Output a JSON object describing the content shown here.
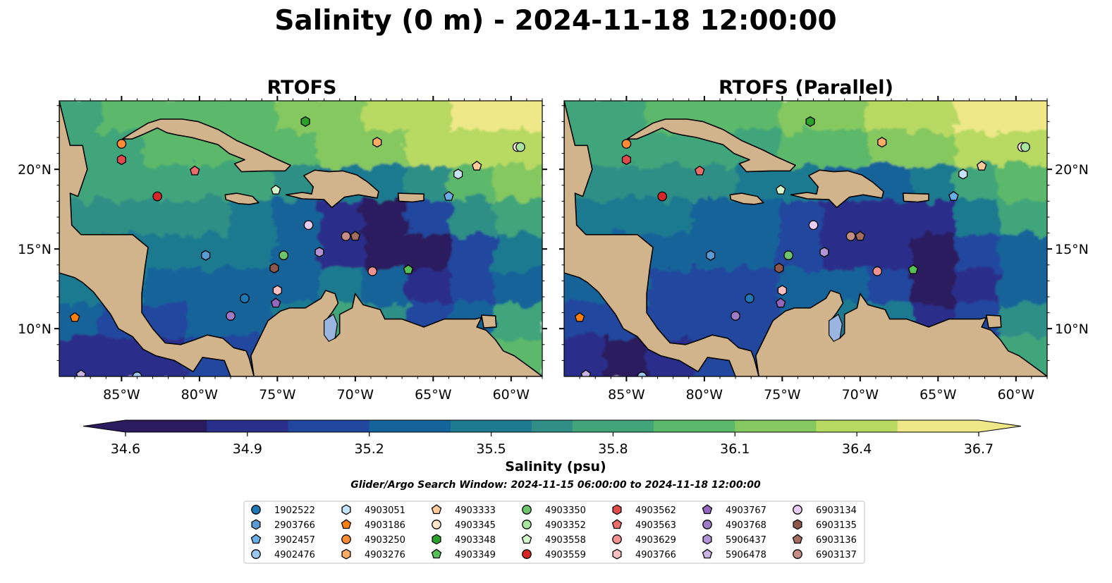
{
  "figure": {
    "title": "Salinity (0 m) - 2024-11-18 12:00:00",
    "search_window": "Glider/Argo Search Window: 2024-11-15 06:00:00 to 2024-11-18 12:00:00"
  },
  "panels": [
    {
      "title": "RTOFS"
    },
    {
      "title": "RTOFS (Parallel)"
    }
  ],
  "colors": {
    "land": "#d2b48c",
    "lake": "#9ab6e0",
    "colormap": [
      "#2a1a5e",
      "#2a2f8a",
      "#21479e",
      "#14639a",
      "#1e7a90",
      "#2f8f86",
      "#41a57a",
      "#5cb86a",
      "#85c860",
      "#b8da62",
      "#eee888"
    ]
  },
  "chart_data": {
    "type": "heatmap",
    "variable": "Salinity (psu)",
    "depth": "0 m",
    "time": "2024-11-18 12:00:00",
    "xlim": [
      -89,
      -58
    ],
    "ylim": [
      7,
      24.3
    ],
    "x_ticks": [
      -85,
      -80,
      -75,
      -70,
      -65,
      -60
    ],
    "x_tick_labels": [
      "85°W",
      "80°W",
      "75°W",
      "70°W",
      "65°W",
      "60°W"
    ],
    "y_ticks": [
      10,
      15,
      20
    ],
    "y_tick_labels": [
      "10°N",
      "15°N",
      "20°N"
    ],
    "colorbar": {
      "label": "Salinity (psu)",
      "vmin": 34.6,
      "vmax": 36.7,
      "ticks": [
        "34.6",
        "34.9",
        "35.2",
        "35.5",
        "35.8",
        "36.1",
        "36.4",
        "36.7"
      ],
      "extend": "both"
    },
    "platforms": [
      {
        "id": "1902522",
        "marker": "circle",
        "color": "#1f77b4",
        "lon": -77.1,
        "lat": 11.9
      },
      {
        "id": "2903766",
        "marker": "hexagon",
        "color": "#5a9bd4",
        "lon": -79.6,
        "lat": 14.6
      },
      {
        "id": "3902457",
        "marker": "pentagon",
        "color": "#6aaee8",
        "lon": -64.0,
        "lat": 18.3
      },
      {
        "id": "4902476",
        "marker": "circle",
        "color": "#9cc7f0",
        "lon": -84.0,
        "lat": 7.0
      },
      {
        "id": "4903051",
        "marker": "hexagon",
        "color": "#c6e4fb",
        "lon": -63.4,
        "lat": 19.7
      },
      {
        "id": "4903186",
        "marker": "pentagon",
        "color": "#ff7f0e",
        "lon": -88.0,
        "lat": 10.7
      },
      {
        "id": "4903250",
        "marker": "circle",
        "color": "#ff8c33",
        "lon": -85.0,
        "lat": 21.6
      },
      {
        "id": "4903276",
        "marker": "hexagon",
        "color": "#ffad66",
        "lon": -68.6,
        "lat": 21.7
      },
      {
        "id": "4903333",
        "marker": "pentagon",
        "color": "#ffcc99",
        "lon": -62.2,
        "lat": 20.2
      },
      {
        "id": "4903345",
        "marker": "circle",
        "color": "#ffe6cc",
        "lon": -59.6,
        "lat": 21.4
      },
      {
        "id": "4903348",
        "marker": "hexagon",
        "color": "#2ca02c",
        "lon": -73.2,
        "lat": 23.0
      },
      {
        "id": "4903349",
        "marker": "pentagon",
        "color": "#55c055",
        "lon": -66.6,
        "lat": 13.7
      },
      {
        "id": "4903350",
        "marker": "circle",
        "color": "#6cc46c",
        "lon": -74.6,
        "lat": 14.6
      },
      {
        "id": "4903352",
        "marker": "circle",
        "color": "#a8e6a1",
        "lon": -59.4,
        "lat": 21.4
      },
      {
        "id": "4903558",
        "marker": "pentagon",
        "color": "#d4f7cc",
        "lon": -75.1,
        "lat": 18.7
      },
      {
        "id": "4903559",
        "marker": "circle",
        "color": "#d62728",
        "lon": -82.7,
        "lat": 18.3
      },
      {
        "id": "4903562",
        "marker": "hexagon",
        "color": "#e04a4a",
        "lon": -85.0,
        "lat": 20.6
      },
      {
        "id": "4903563",
        "marker": "pentagon",
        "color": "#ec6b6b",
        "lon": -80.3,
        "lat": 19.9
      },
      {
        "id": "4903629",
        "marker": "circle",
        "color": "#f29191",
        "lon": -68.9,
        "lat": 13.6
      },
      {
        "id": "4903766",
        "marker": "hexagon",
        "color": "#f8c0c0",
        "lon": -75.0,
        "lat": 12.4
      },
      {
        "id": "4903767",
        "marker": "pentagon",
        "color": "#9467bd",
        "lon": -75.1,
        "lat": 11.6
      },
      {
        "id": "4903768",
        "marker": "circle",
        "color": "#9f7ac6",
        "lon": -78.0,
        "lat": 10.8
      },
      {
        "id": "5906437",
        "marker": "hexagon",
        "color": "#b294d4",
        "lon": -72.3,
        "lat": 14.8
      },
      {
        "id": "5906478",
        "marker": "pentagon",
        "color": "#c9b3e3",
        "lon": -87.6,
        "lat": 7.1
      },
      {
        "id": "6903134",
        "marker": "circle",
        "color": "#e8ccf5",
        "lon": -73.0,
        "lat": 16.5
      },
      {
        "id": "6903135",
        "marker": "hexagon",
        "color": "#8c564b",
        "lon": -75.2,
        "lat": 13.8
      },
      {
        "id": "6903136",
        "marker": "pentagon",
        "color": "#a56b5f",
        "lon": -70.0,
        "lat": 15.8
      },
      {
        "id": "6903137",
        "marker": "circle",
        "color": "#c48e84",
        "lon": -70.6,
        "lat": 15.8
      }
    ]
  }
}
